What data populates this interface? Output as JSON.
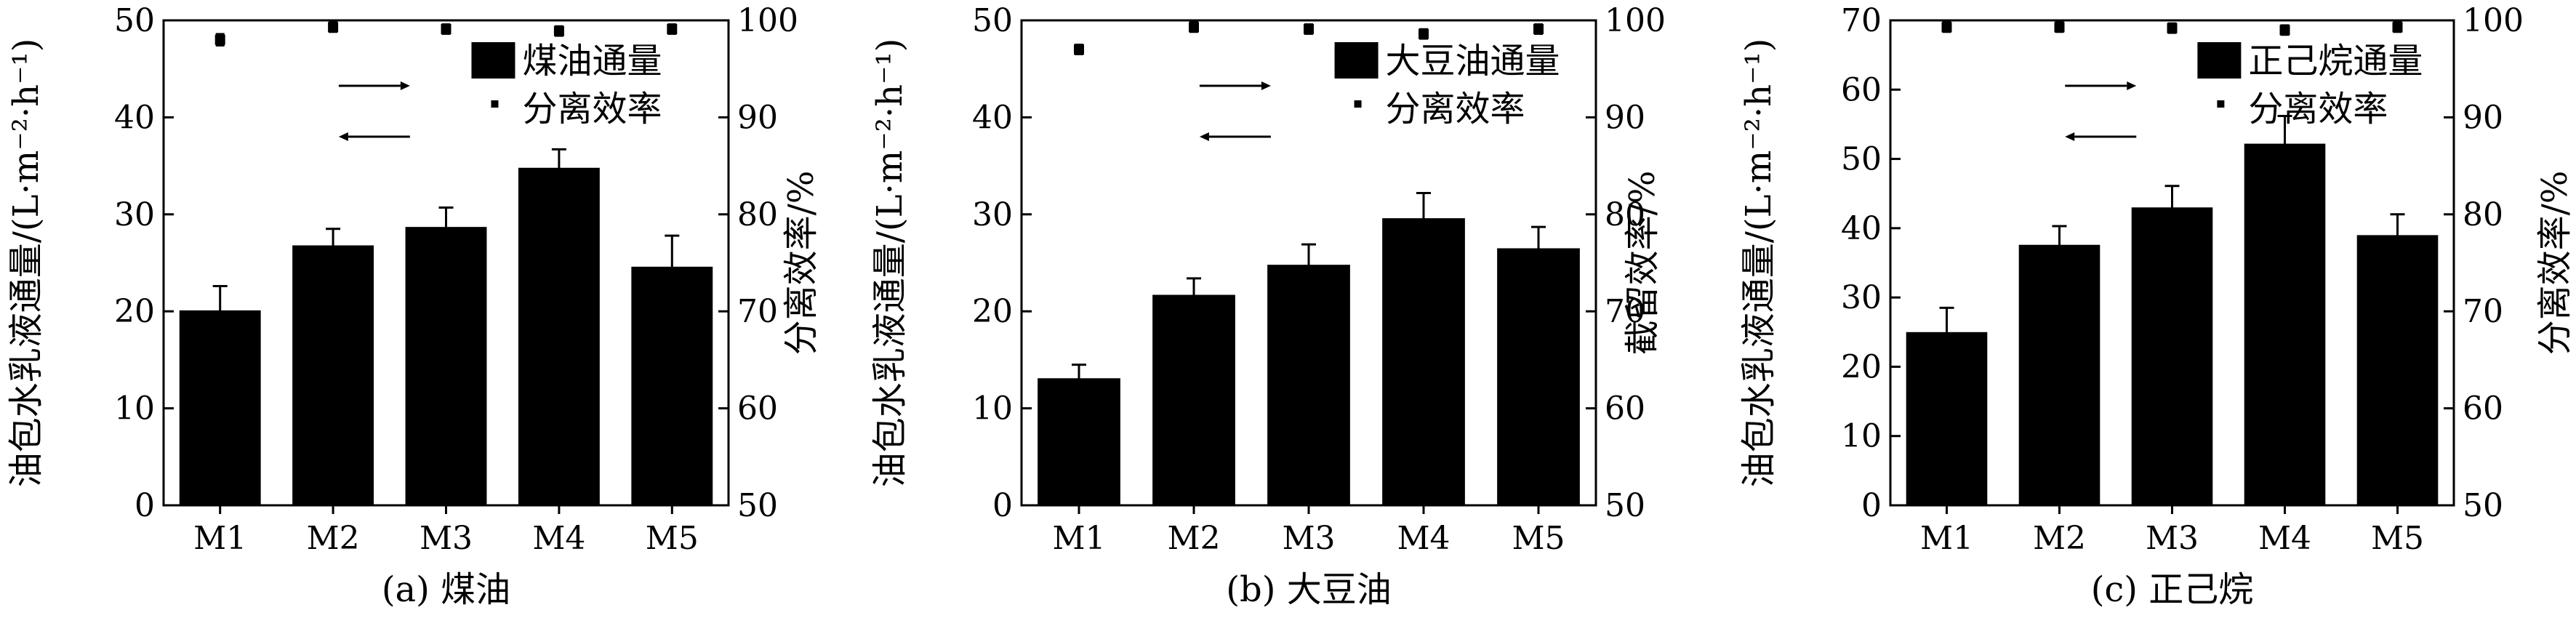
{
  "chart_data": [
    {
      "type": "bar",
      "title": "(a) 煤油",
      "categories": [
        "M1",
        "M2",
        "M3",
        "M4",
        "M5"
      ],
      "series": [
        {
          "name": "煤油通量",
          "axis": "left",
          "values": [
            20.1,
            26.8,
            28.7,
            34.8,
            24.6
          ],
          "errors": [
            2.5,
            1.7,
            2.0,
            1.9,
            3.2
          ]
        },
        {
          "name": "分离效率",
          "axis": "right",
          "type": "scatter",
          "values": [
            98.0,
            99.3,
            99.1,
            98.9,
            99.1
          ],
          "errors": [
            0.6,
            0.5,
            0.5,
            0.5,
            0.5
          ]
        }
      ],
      "ylabel": "油包水乳液通量/(L·m⁻²·h⁻¹)",
      "ylabel_right": "分离效率/%",
      "ylim": [
        0,
        50
      ],
      "yticks": [
        0,
        10,
        20,
        30,
        40,
        50
      ],
      "ylim_right": [
        50,
        100
      ],
      "yticks_right": [
        50,
        60,
        70,
        80,
        90,
        100
      ],
      "arrow_right_label": "→",
      "arrow_left_label": "←",
      "grid": false
    },
    {
      "type": "bar",
      "title": "(b) 大豆油",
      "categories": [
        "M1",
        "M2",
        "M3",
        "M4",
        "M5"
      ],
      "series": [
        {
          "name": "大豆油通量",
          "axis": "left",
          "values": [
            13.1,
            21.7,
            24.8,
            29.6,
            26.5
          ],
          "errors": [
            1.4,
            1.7,
            2.1,
            2.6,
            2.2
          ]
        },
        {
          "name": "分离效率",
          "axis": "right",
          "type": "scatter",
          "values": [
            97.0,
            99.3,
            99.1,
            98.6,
            99.1
          ],
          "errors": [
            0.5,
            0.5,
            0.5,
            0.5,
            0.5
          ]
        }
      ],
      "ylabel": "油包水乳液通量/(L·m⁻²·h⁻¹)",
      "ylabel_right": "截留效率/%",
      "ylim": [
        0,
        50
      ],
      "yticks": [
        0,
        10,
        20,
        30,
        40,
        50
      ],
      "ylim_right": [
        50,
        100
      ],
      "yticks_right": [
        50,
        60,
        70,
        80,
        90,
        100
      ],
      "arrow_right_label": "→",
      "arrow_left_label": "←",
      "grid": false
    },
    {
      "type": "bar",
      "title": "(c) 正己烷",
      "categories": [
        "M1",
        "M2",
        "M3",
        "M4",
        "M5"
      ],
      "series": [
        {
          "name": "正己烷通量",
          "axis": "left",
          "values": [
            25.0,
            37.6,
            43.0,
            52.2,
            39.0
          ],
          "errors": [
            3.5,
            2.7,
            3.1,
            4.0,
            3.0
          ]
        },
        {
          "name": "分离效率",
          "axis": "right",
          "type": "scatter",
          "values": [
            99.3,
            99.3,
            99.2,
            99.0,
            99.3
          ],
          "errors": [
            0.5,
            0.5,
            0.5,
            0.5,
            0.5
          ]
        }
      ],
      "ylabel": "油包水乳液通量/(L·m⁻²·h⁻¹)",
      "ylabel_right": "分离效率/%",
      "ylim": [
        0,
        70
      ],
      "yticks": [
        0,
        10,
        20,
        30,
        40,
        50,
        60,
        70
      ],
      "ylim_right": [
        50,
        100
      ],
      "yticks_right": [
        50,
        60,
        70,
        80,
        90,
        100
      ],
      "arrow_right_label": "→",
      "arrow_left_label": "←",
      "grid": false
    }
  ],
  "colors": {
    "bar": "#000000",
    "axis": "#000000",
    "marker": "#000000"
  }
}
